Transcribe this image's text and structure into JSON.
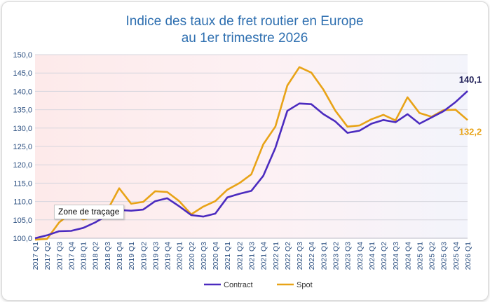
{
  "chart_data": {
    "type": "line",
    "title": [
      "Indice des taux de fret routier en Europe",
      "au 1er trimestre 2026"
    ],
    "xlabel": "",
    "ylabel": "",
    "ylim": [
      100,
      150
    ],
    "yticks": [
      "100,0",
      "105,0",
      "110,0",
      "115,0",
      "120,0",
      "125,0",
      "130,0",
      "135,0",
      "140,0",
      "145,0",
      "150,0"
    ],
    "categories": [
      "2017 Q1",
      "2017 Q2",
      "2017 Q3",
      "2017 Q4",
      "2018 Q1",
      "2018 Q2",
      "2018 Q3",
      "2018 Q4",
      "2019 Q1",
      "2019 Q2",
      "2019 Q3",
      "2019 Q4",
      "2020 Q1",
      "2020 Q2",
      "2020 Q3",
      "2020 Q4",
      "2021 Q1",
      "2021 Q2",
      "2021 Q3",
      "2021 Q4",
      "2022 Q1",
      "2022 Q2",
      "2022 Q3",
      "2022 Q4",
      "2023 Q1",
      "2023 Q2",
      "2023 Q3",
      "2023 Q4",
      "2024 Q1",
      "2024 Q2",
      "2024 Q3",
      "2024 Q4",
      "2025 Q1",
      "2025 Q2",
      "2025 Q3",
      "2025 Q4",
      "2026 Q1"
    ],
    "series": [
      {
        "name": "Contract",
        "color": "#4b2bbf",
        "values": [
          100.0,
          100.8,
          101.9,
          102.0,
          102.8,
          104.3,
          106.2,
          107.7,
          107.5,
          107.8,
          110.1,
          110.9,
          108.7,
          106.3,
          105.9,
          106.7,
          111.1,
          112.1,
          112.9,
          117.0,
          124.6,
          134.7,
          136.7,
          136.5,
          133.8,
          131.8,
          128.7,
          129.3,
          131.2,
          132.2,
          131.6,
          133.8,
          131.2,
          132.9,
          134.6,
          137.1,
          140.1
        ]
      },
      {
        "name": "Spot",
        "color": "#e8a317",
        "values": [
          99.6,
          99.8,
          104.3,
          106.9,
          105.1,
          105.9,
          107.5,
          113.6,
          109.4,
          109.9,
          112.8,
          112.6,
          110.1,
          106.5,
          108.6,
          110.1,
          113.2,
          115.0,
          117.4,
          125.6,
          130.4,
          141.6,
          146.6,
          145.1,
          140.5,
          134.7,
          130.4,
          130.7,
          132.4,
          133.6,
          132.1,
          138.4,
          134.1,
          133.1,
          134.9,
          135.0,
          132.2
        ]
      }
    ],
    "end_labels": {
      "Contract": "140,1",
      "Spot": "132,2"
    },
    "legend": {
      "placement": "bottom-center",
      "items": [
        "Contract",
        "Spot"
      ]
    },
    "grid": {
      "horizontal": true,
      "vertical": false
    },
    "tooltip_text": "Zone de traçage"
  }
}
